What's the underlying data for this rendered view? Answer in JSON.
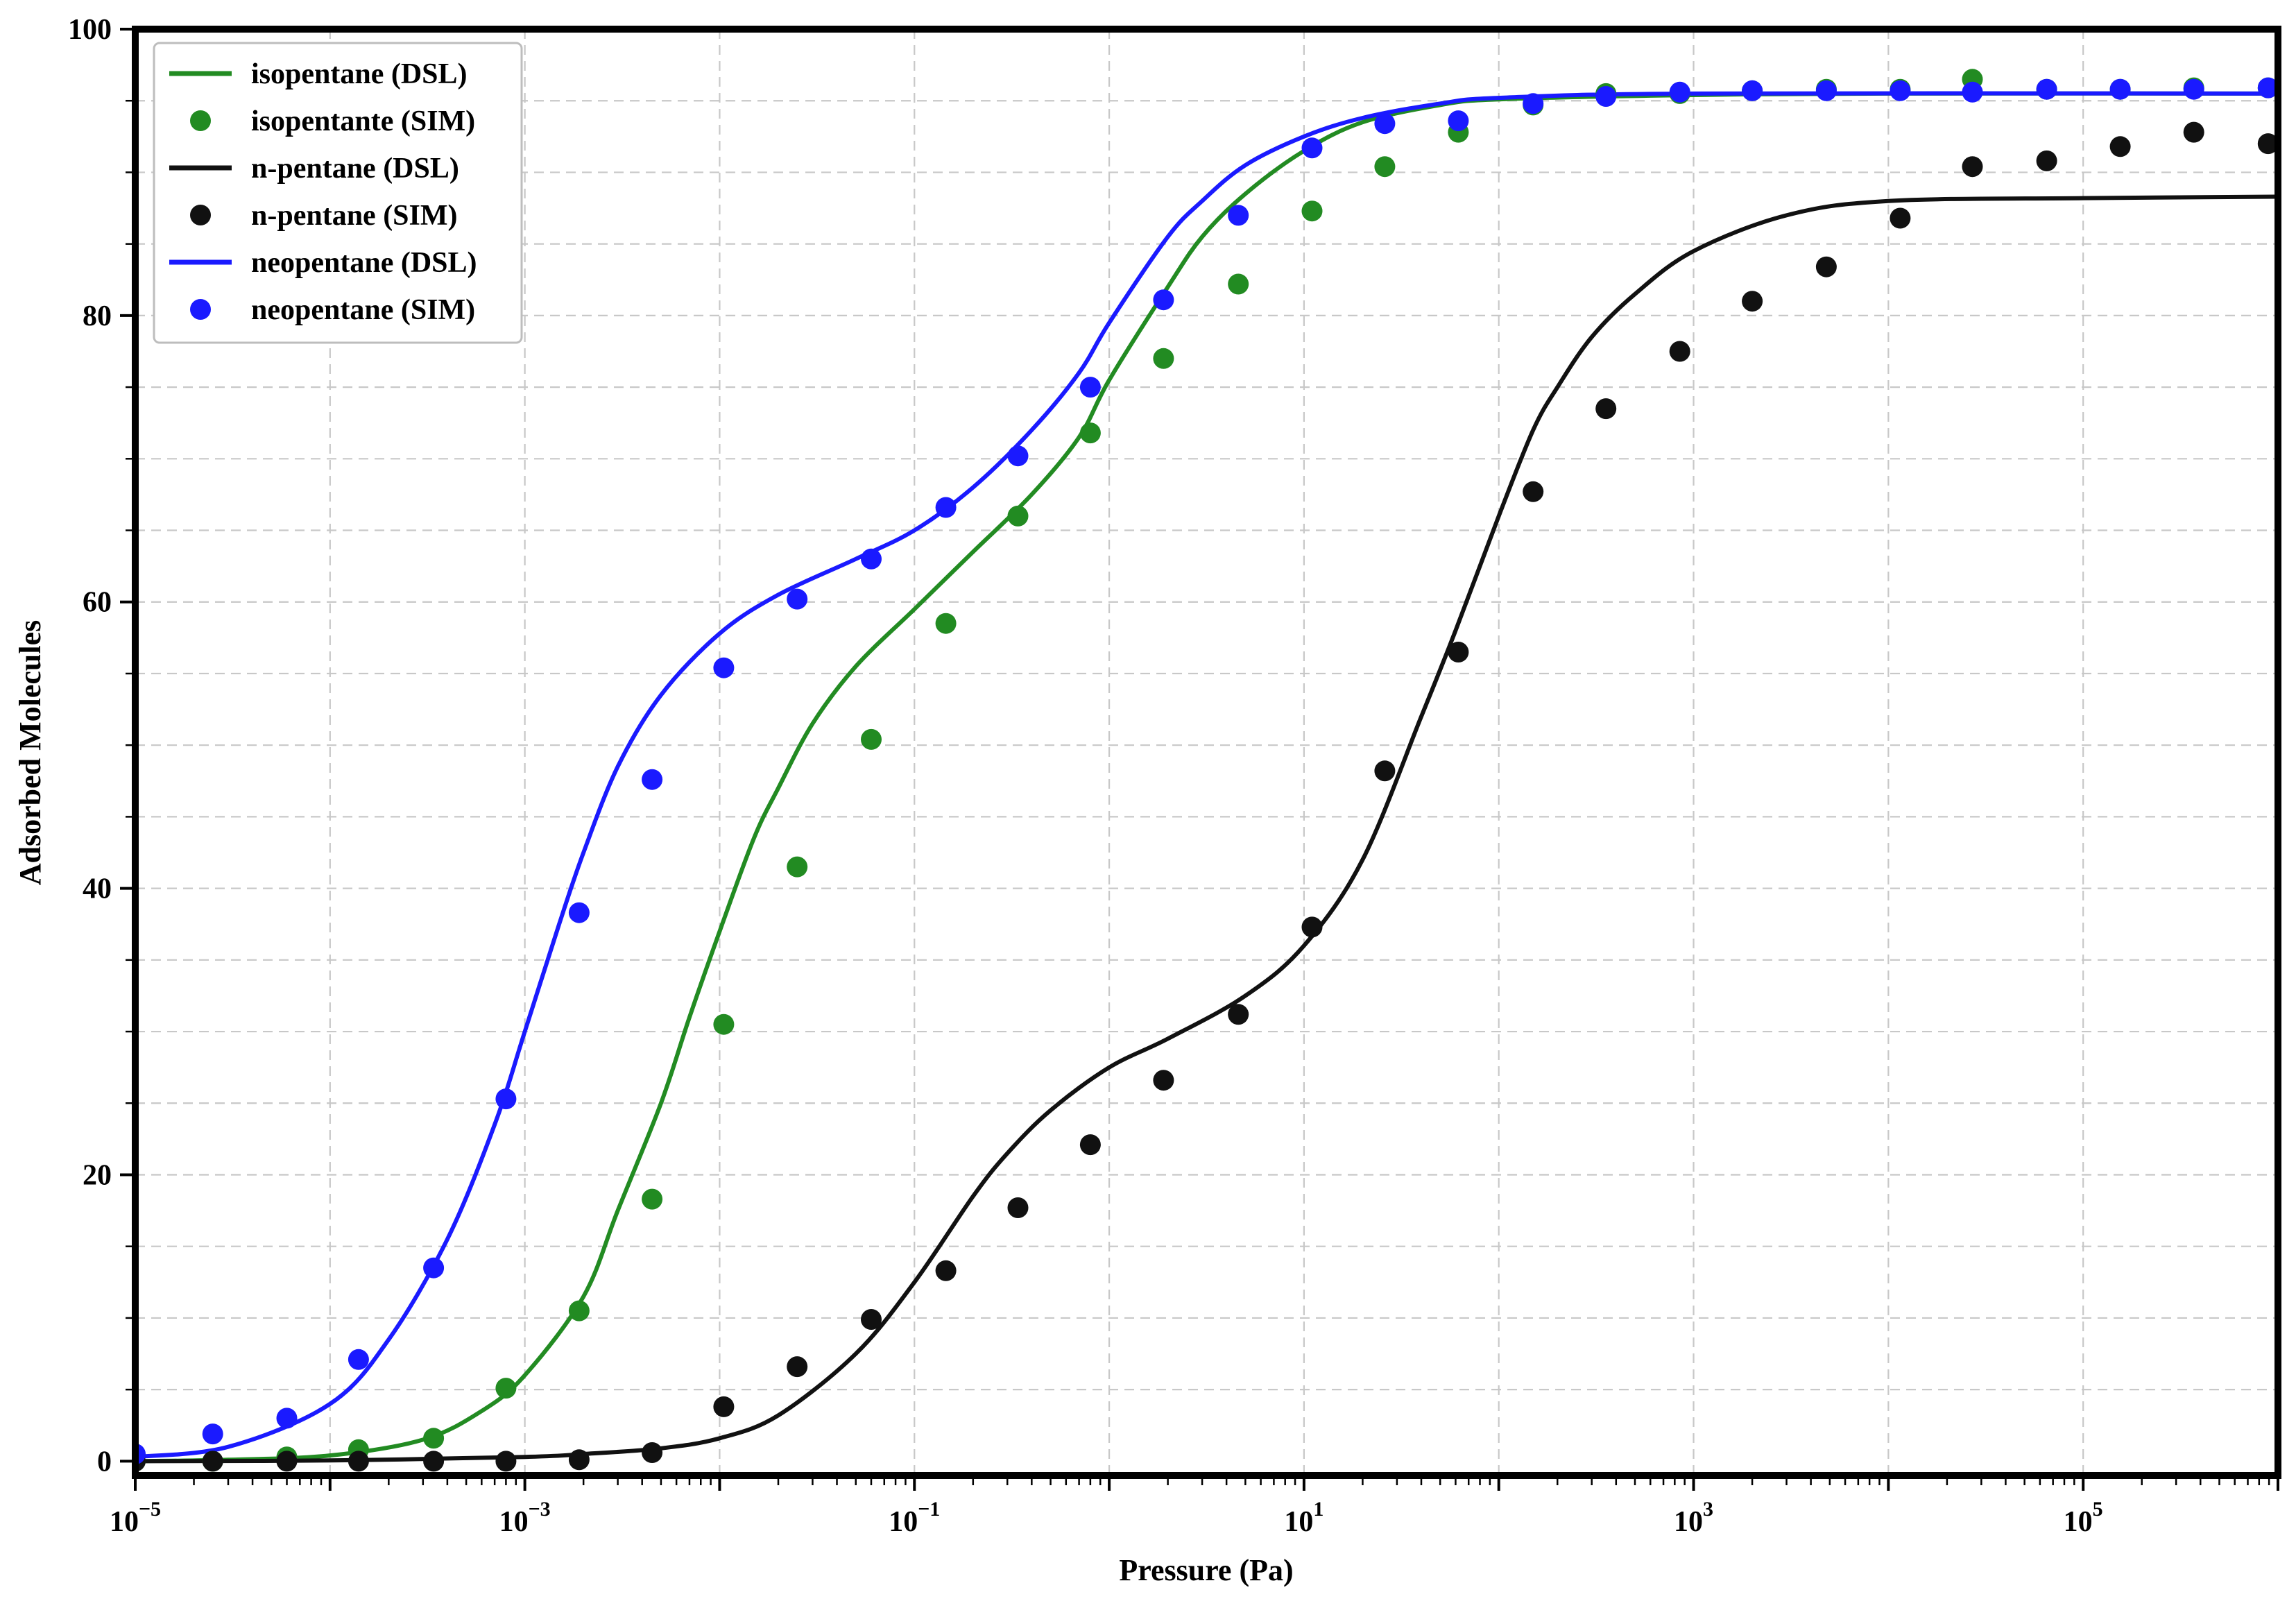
{
  "chart_data": {
    "type": "scatter",
    "xlabel": "Pressure (Pa)",
    "ylabel": "Adsorbed Molecules",
    "xscale": "log",
    "xlim": [
      1e-05,
      1000000
    ],
    "ylim": [
      -1,
      100
    ],
    "grid": true,
    "legend_placement": "top-left",
    "x_tick_labels": [
      {
        "value": 1e-05,
        "base": "10",
        "exp": "−5"
      },
      {
        "value": 0.001,
        "base": "10",
        "exp": "−3"
      },
      {
        "value": 0.1,
        "base": "10",
        "exp": "−1"
      },
      {
        "value": 10,
        "base": "10",
        "exp": "1"
      },
      {
        "value": 1000,
        "base": "10",
        "exp": "3"
      },
      {
        "value": 100000,
        "base": "10",
        "exp": "5"
      }
    ],
    "y_tick_labels": [
      {
        "value": 0,
        "label": "0"
      },
      {
        "value": 20,
        "label": "20"
      },
      {
        "value": 40,
        "label": "40"
      },
      {
        "value": 60,
        "label": "60"
      },
      {
        "value": 80,
        "label": "80"
      },
      {
        "value": 100,
        "label": "100"
      }
    ],
    "series": [
      {
        "name": "isopentane (DSL)",
        "kind": "line",
        "color": "#228B22",
        "x": [
          1e-05,
          3e-05,
          0.0001,
          0.0003,
          0.0006,
          0.001,
          0.002,
          0.003,
          0.005,
          0.007,
          0.01,
          0.015,
          0.02,
          0.03,
          0.05,
          0.1,
          0.2,
          0.4,
          0.7,
          1,
          2,
          3,
          5,
          10,
          20,
          50,
          100,
          1000,
          10000,
          1000000
        ],
        "y": [
          0.0,
          0.1,
          0.4,
          1.5,
          3.5,
          6.0,
          11.5,
          17.5,
          25.0,
          31.0,
          37.0,
          43.5,
          47.0,
          51.5,
          55.5,
          59.5,
          63.5,
          67.5,
          71.5,
          75.5,
          82.0,
          85.5,
          88.5,
          91.5,
          93.5,
          94.7,
          95.1,
          95.4,
          95.5,
          95.5
        ]
      },
      {
        "name": "isopentante (SIM)",
        "kind": "scatter",
        "color": "#228B22",
        "x": [
          1e-05,
          2.5e-05,
          6e-05,
          0.00014,
          0.00034,
          0.0008,
          0.0019,
          0.0045,
          0.0105,
          0.025,
          0.06,
          0.145,
          0.34,
          0.8,
          1.9,
          4.6,
          11,
          26,
          62,
          150,
          355,
          850,
          2000,
          4800,
          11500,
          27000,
          65000,
          155000,
          370000,
          890000
        ],
        "y": [
          0.0,
          0.0,
          0.3,
          0.8,
          1.6,
          5.1,
          10.5,
          18.3,
          30.5,
          41.5,
          50.4,
          58.5,
          66.0,
          71.8,
          77.0,
          82.2,
          87.3,
          90.4,
          92.8,
          94.7,
          95.5,
          95.5,
          95.7,
          95.8,
          95.8,
          96.5,
          95.8,
          95.8,
          95.9,
          95.9
        ]
      },
      {
        "name": "n-pentane (DSL)",
        "kind": "line",
        "color": "#111111",
        "x": [
          1e-05,
          0.0001,
          0.001,
          0.002,
          0.005,
          0.01,
          0.02,
          0.05,
          0.1,
          0.2,
          0.3,
          0.5,
          1,
          2,
          5,
          10,
          20,
          40,
          60,
          100,
          150,
          200,
          300,
          500,
          1000,
          3000,
          10000,
          100000,
          1000000
        ],
        "y": [
          0.0,
          0.05,
          0.3,
          0.5,
          0.9,
          1.6,
          3.2,
          7.5,
          12.5,
          18.5,
          21.5,
          24.5,
          27.5,
          29.5,
          32.5,
          36.0,
          42.0,
          52.0,
          58.0,
          66.0,
          72.0,
          75.0,
          78.5,
          81.5,
          84.5,
          87.0,
          88.0,
          88.2,
          88.3
        ]
      },
      {
        "name": "n-pentane (SIM)",
        "kind": "scatter",
        "color": "#111111",
        "x": [
          1e-05,
          2.5e-05,
          6e-05,
          0.00014,
          0.00034,
          0.0008,
          0.0019,
          0.0045,
          0.0105,
          0.025,
          0.06,
          0.145,
          0.34,
          0.8,
          1.9,
          4.6,
          11,
          26,
          62,
          150,
          355,
          850,
          2000,
          4800,
          11500,
          27000,
          65000,
          155000,
          370000,
          890000
        ],
        "y": [
          0.0,
          0.0,
          0.0,
          0.0,
          0.0,
          0.0,
          0.1,
          0.6,
          3.8,
          6.6,
          9.9,
          13.3,
          17.7,
          22.1,
          26.6,
          31.2,
          37.3,
          48.2,
          56.5,
          67.7,
          73.5,
          77.5,
          81.0,
          83.4,
          86.8,
          90.4,
          90.8,
          91.8,
          92.8,
          92.0
        ]
      },
      {
        "name": "neopentane (DSL)",
        "kind": "line",
        "color": "#1a1aff",
        "x": [
          1e-05,
          3e-05,
          0.0001,
          0.0002,
          0.0004,
          0.0007,
          0.001,
          0.0015,
          0.002,
          0.003,
          0.005,
          0.01,
          0.02,
          0.05,
          0.1,
          0.2,
          0.4,
          0.7,
          1,
          2,
          3,
          5,
          10,
          20,
          50,
          100,
          1000,
          1000000
        ],
        "y": [
          0.3,
          1.0,
          4.0,
          8.5,
          15.5,
          23.5,
          30.0,
          37.5,
          42.5,
          48.5,
          53.5,
          57.8,
          60.5,
          63.0,
          65.0,
          68.0,
          72.0,
          76.0,
          79.5,
          85.5,
          88.0,
          90.5,
          92.5,
          93.8,
          94.8,
          95.2,
          95.5,
          95.5
        ]
      },
      {
        "name": "neopentane (SIM)",
        "kind": "scatter",
        "color": "#1a1aff",
        "x": [
          1e-05,
          2.5e-05,
          6e-05,
          0.00014,
          0.00034,
          0.0008,
          0.0019,
          0.0045,
          0.0105,
          0.025,
          0.06,
          0.145,
          0.34,
          0.8,
          1.9,
          4.6,
          11,
          26,
          62,
          150,
          355,
          850,
          2000,
          4800,
          11500,
          27000,
          65000,
          155000,
          370000,
          890000
        ],
        "y": [
          0.5,
          1.9,
          3.0,
          7.1,
          13.5,
          25.3,
          38.3,
          47.6,
          55.4,
          60.2,
          63.0,
          66.6,
          70.2,
          75.0,
          81.1,
          87.0,
          91.7,
          93.4,
          93.6,
          94.8,
          95.3,
          95.6,
          95.7,
          95.7,
          95.7,
          95.6,
          95.8,
          95.8,
          95.8,
          95.9
        ]
      }
    ]
  }
}
